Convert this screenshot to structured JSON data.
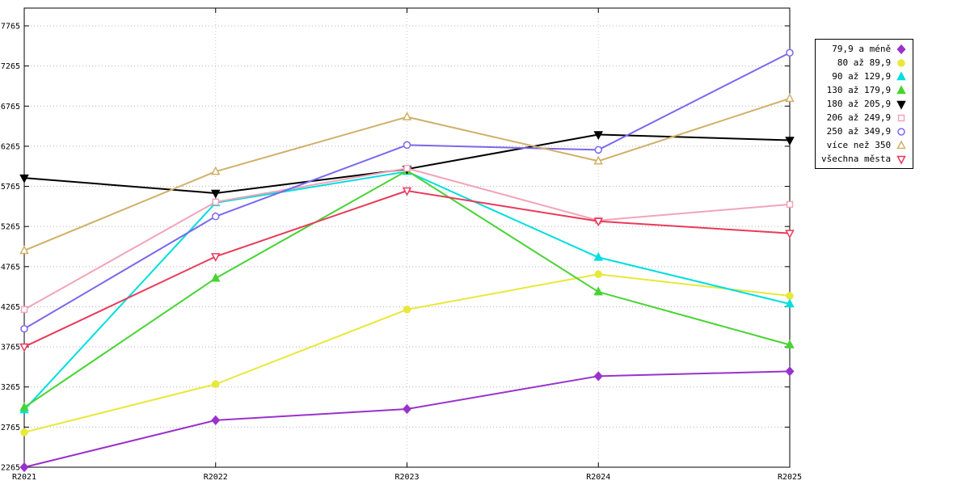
{
  "chart_data": {
    "type": "line",
    "title": "",
    "xlabel": "",
    "ylabel": "",
    "categories": [
      "R2021",
      "R2022",
      "R2023",
      "R2024",
      "R2025"
    ],
    "yticks": [
      2265,
      2765,
      3265,
      3765,
      4265,
      4765,
      5265,
      5765,
      6265,
      6765,
      7265,
      7765
    ],
    "ylim": [
      2265,
      7765
    ],
    "grid": true,
    "legend_position": "outside-right-top",
    "series": [
      {
        "name": "79,9 a méně",
        "color": "#9932cc",
        "marker": "diamond-filled",
        "values": [
          2265,
          2850,
          2990,
          3400,
          3460
        ]
      },
      {
        "name": "80 až 89,9",
        "color": "#e8e838",
        "marker": "circle-filled",
        "values": [
          2700,
          3300,
          4230,
          4670,
          4400
        ]
      },
      {
        "name": "90 až 129,9",
        "color": "#00dede",
        "marker": "triangle-up-filled",
        "values": [
          2980,
          5560,
          5950,
          4880,
          4300
        ]
      },
      {
        "name": "130 až 179,9",
        "color": "#46d432",
        "marker": "triangle-up-filled",
        "values": [
          3010,
          4620,
          5960,
          4450,
          3790
        ]
      },
      {
        "name": "180 až 205,9",
        "color": "#000000",
        "marker": "triangle-down-filled",
        "values": [
          5870,
          5680,
          5980,
          6410,
          6340
        ]
      },
      {
        "name": "206 až 249,9",
        "color": "#f2a4b8",
        "marker": "square-open",
        "values": [
          4230,
          5570,
          5990,
          5340,
          5540
        ]
      },
      {
        "name": "250 až 349,9",
        "color": "#7b68ee",
        "marker": "circle-open",
        "values": [
          3990,
          5390,
          6280,
          6220,
          7430
        ]
      },
      {
        "name": "více než 350",
        "color": "#d0b068",
        "marker": "triangle-up-open",
        "values": [
          4965,
          5950,
          6630,
          6080,
          6860
        ]
      },
      {
        "name": "všechna města",
        "color": "#e93a5a",
        "marker": "triangle-down-open",
        "values": [
          3765,
          4890,
          5710,
          5330,
          5180
        ]
      }
    ]
  }
}
